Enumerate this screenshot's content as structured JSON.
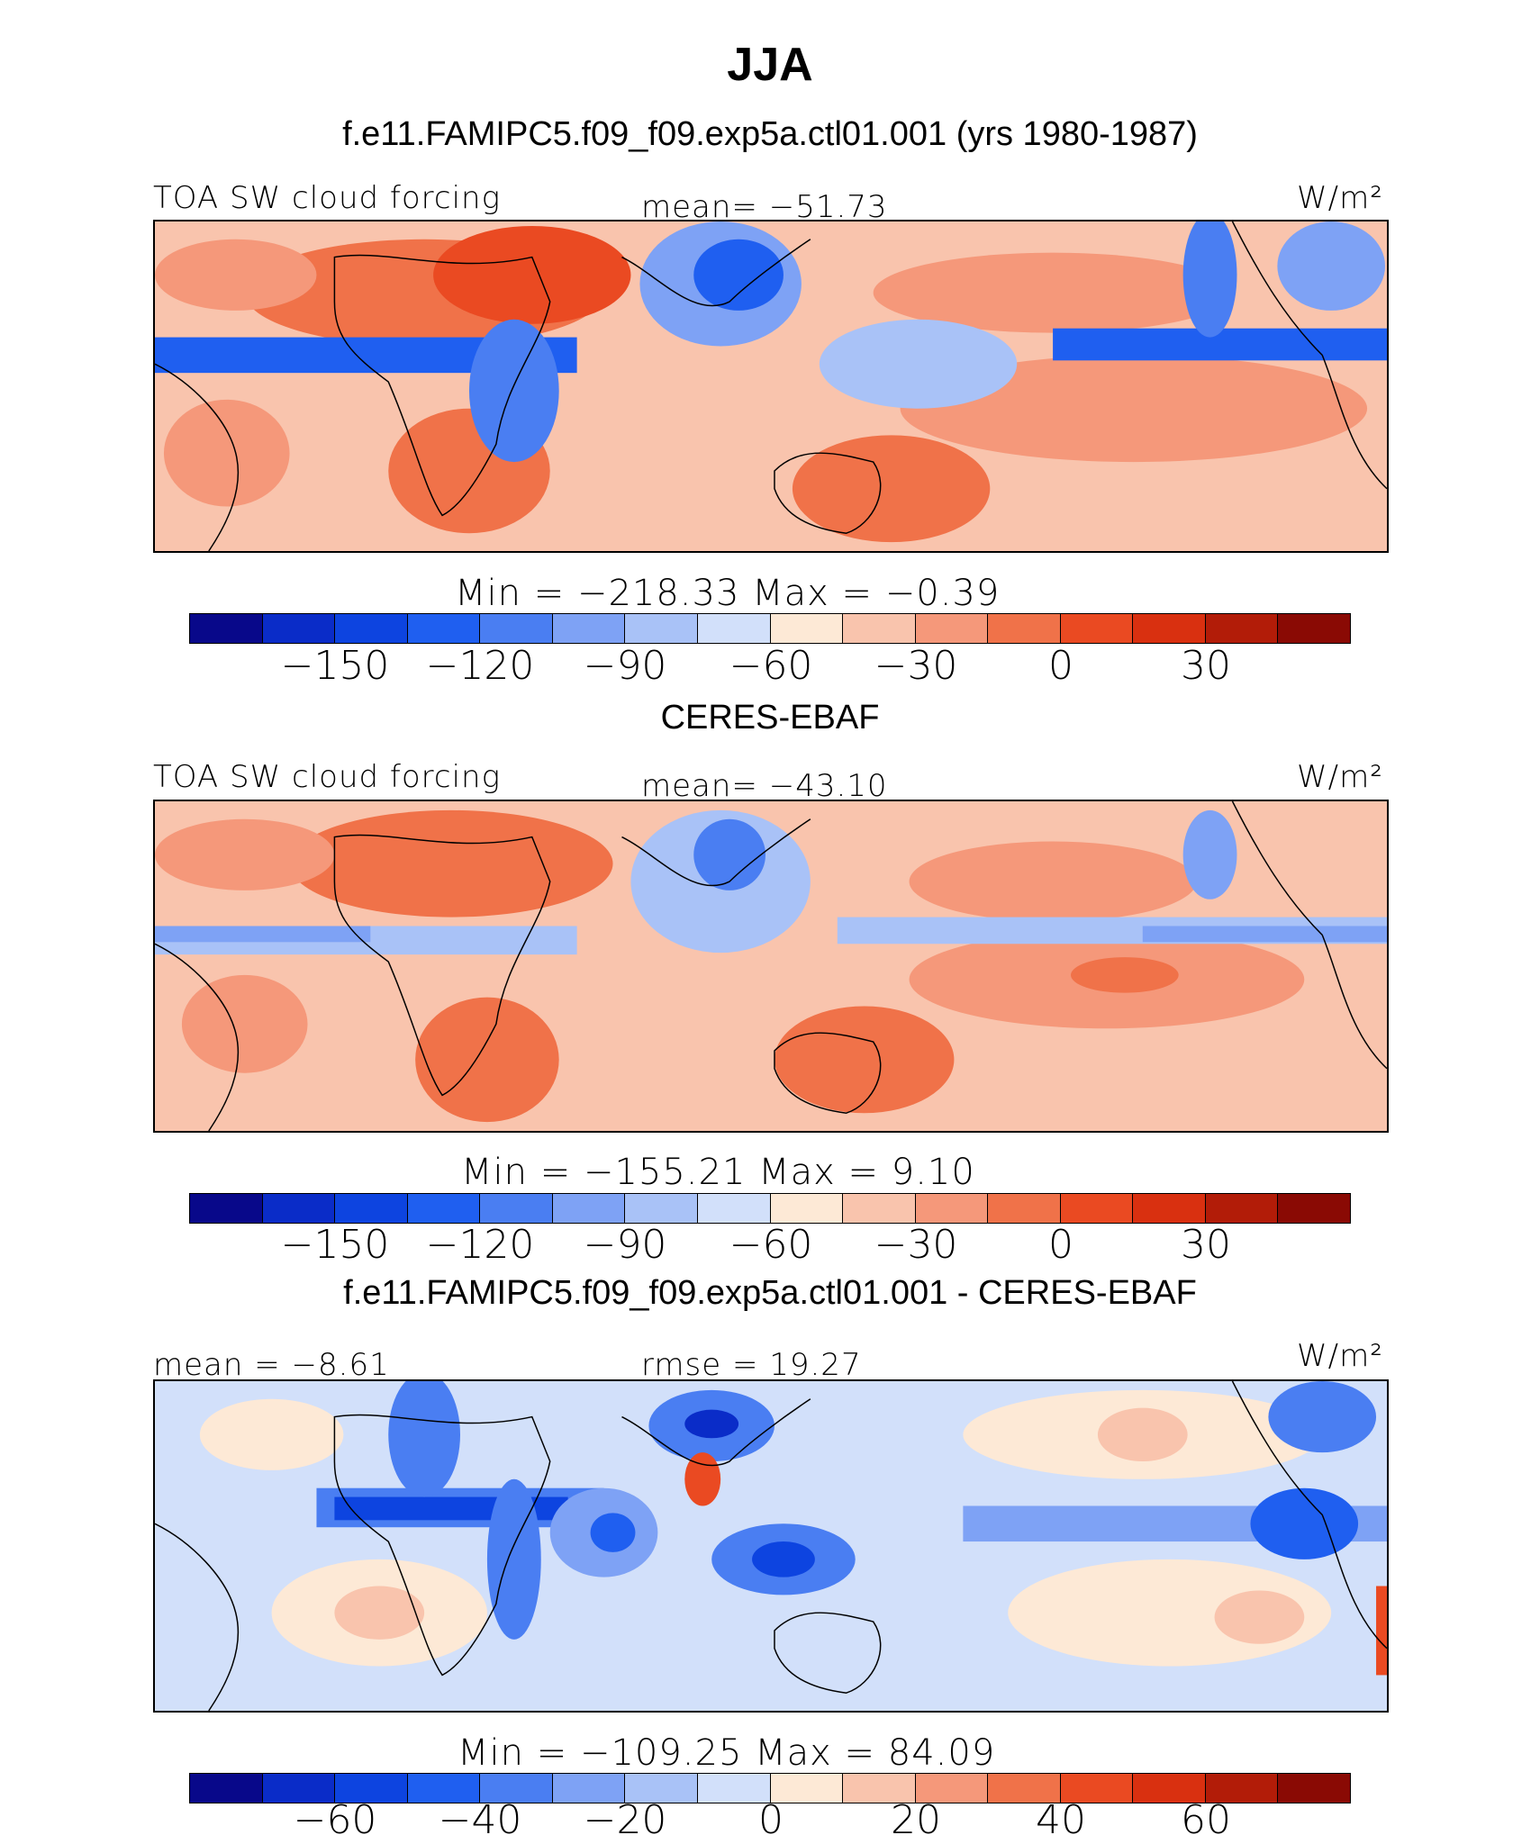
{
  "title": "JJA",
  "panels": [
    {
      "heading": "f.e11.FAMIPC5.f09_f09.exp5a.ctl01.001 (yrs 1980-1987)",
      "left_label": "TOA SW cloud forcing",
      "center_label": "mean= −51.73",
      "units": "W/m²",
      "minmax": "Min  =  −218.33  Max  =    −0.39",
      "ticks": [
        "−150",
        "−120",
        "−90",
        "−60",
        "−30",
        "0",
        "30"
      ]
    },
    {
      "heading": "CERES-EBAF",
      "left_label": "TOA SW cloud forcing",
      "center_label": "mean= −43.10",
      "units": "W/m²",
      "minmax": "Min  =  −155.21  Max  =     9.10",
      "ticks": [
        "−150",
        "−120",
        "−90",
        "−60",
        "−30",
        "0",
        "30"
      ]
    },
    {
      "heading": "f.e11.FAMIPC5.f09_f09.exp5a.ctl01.001 - CERES-EBAF",
      "left_label": "mean =   −8.61",
      "center_label": "rmse =   19.27",
      "units": "W/m²",
      "minmax": "Min  =  −109.25  Max  =    84.09",
      "ticks": [
        "−60",
        "−40",
        "−20",
        "0",
        "20",
        "40",
        "60"
      ]
    }
  ],
  "colorbar_colors": [
    "#08088a",
    "#0a2cc8",
    "#0d44e0",
    "#1f5ff0",
    "#4a7ef2",
    "#7ea2f5",
    "#a9c2f7",
    "#d2e0fa",
    "#fde9d6",
    "#f9c4ad",
    "#f5987a",
    "#f07249",
    "#ea4a22",
    "#d93010",
    "#b21c08",
    "#8a0a04"
  ]
}
